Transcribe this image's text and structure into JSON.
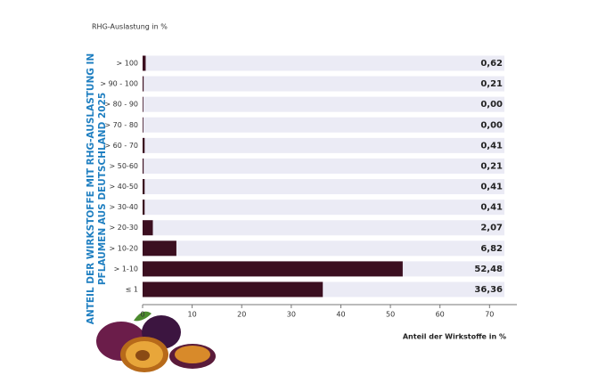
{
  "chart_data": {
    "type": "bar",
    "orientation": "horizontal",
    "title": [
      "ANTEIL DER WIRKSTOFFE MIT RHG-AUSLASTUNG IN",
      "PFLAUMEN AUS DEUTSCHLAND 2025"
    ],
    "y_label": "RHG-Auslastung in %",
    "x_label": "Anteil der Wirkstoffe in %",
    "categories": [
      "> 100",
      "> 90 - 100",
      "> 80 - 90",
      "> 70 - 80",
      "> 60 - 70",
      "> 50-60",
      "> 40-50",
      "> 30-40",
      "> 20-30",
      "> 10-20",
      "> 1-10",
      "≤ 1"
    ],
    "values": [
      0.62,
      0.21,
      0.0,
      0.0,
      0.41,
      0.21,
      0.41,
      0.41,
      2.07,
      6.82,
      52.48,
      36.36
    ],
    "value_labels": [
      "0,62",
      "0,21",
      "0,00",
      "0,00",
      "0,41",
      "0,21",
      "0,41",
      "0,41",
      "2,07",
      "6,82",
      "52,48",
      "36,36"
    ],
    "color": "#3b0f20",
    "xlim": [
      0,
      73
    ],
    "xticks": [
      0,
      10,
      20,
      30,
      40,
      50,
      60,
      70
    ]
  }
}
